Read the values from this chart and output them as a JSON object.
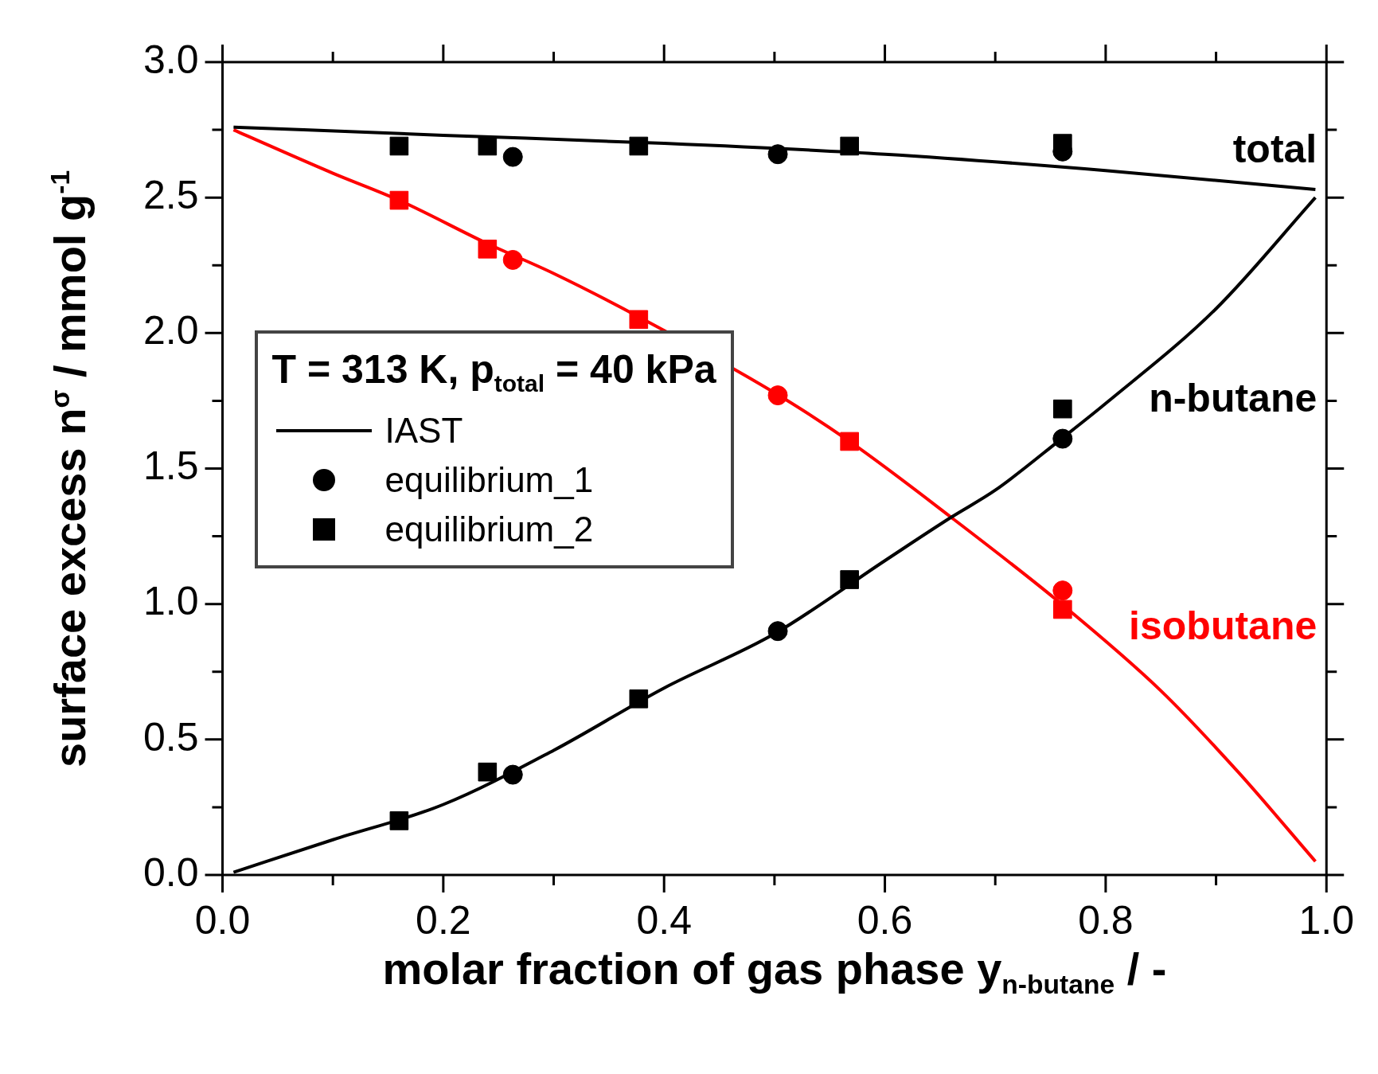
{
  "chart_data": {
    "type": "scatter",
    "xlabel": "molar fraction of gas phase y$_{n-butane}$ / -",
    "ylabel": "surface excess n$^{σ}$ / mmol g$^{-1}$",
    "legend_title": "T = 313 K, p$_{total}$ = 40 kPa",
    "legend": "left",
    "grid": false,
    "xlim": [
      0,
      1
    ],
    "xticks": [
      {
        "value": 0,
        "label": "0.0"
      },
      {
        "value": 0.1,
        "label": null
      },
      {
        "value": 0.2,
        "label": "0.2"
      },
      {
        "value": 0.3,
        "label": null
      },
      {
        "value": 0.4,
        "label": "0.4"
      },
      {
        "value": 0.5,
        "label": null
      },
      {
        "value": 0.6,
        "label": "0.6"
      },
      {
        "value": 0.7,
        "label": null
      },
      {
        "value": 0.8,
        "label": "0.8"
      },
      {
        "value": 0.9,
        "label": null
      },
      {
        "value": 1,
        "label": "1.0"
      }
    ],
    "ylim": [
      0,
      3
    ],
    "yticks": [
      {
        "value": 0,
        "label": "0.0"
      },
      {
        "value": 0.25,
        "label": null
      },
      {
        "value": 0.5,
        "label": "0.5"
      },
      {
        "value": 0.75,
        "label": null
      },
      {
        "value": 1,
        "label": "1.0"
      },
      {
        "value": 1.25,
        "label": null
      },
      {
        "value": 1.5,
        "label": "1.5"
      },
      {
        "value": 1.75,
        "label": null
      },
      {
        "value": 2,
        "label": "2.0"
      },
      {
        "value": 2.25,
        "label": null
      },
      {
        "value": 2.5,
        "label": "2.5"
      },
      {
        "value": 2.75,
        "label": null
      },
      {
        "value": 3,
        "label": "3.0"
      }
    ],
    "annotations": [
      "total",
      "n-butane",
      "isobutane"
    ],
    "series": [
      {
        "name": "IAST",
        "type": "line",
        "marker": "none",
        "color": "#000000",
        "x": [
          0.01,
          0.2,
          0.4,
          0.6,
          0.8,
          0.99
        ],
        "values": [
          2.76,
          2.73,
          2.7,
          2.66,
          2.6,
          2.53
        ]
      },
      {
        "type": "line",
        "marker": "none",
        "color": "#000000",
        "x": [
          0.01,
          0.1,
          0.2,
          0.3,
          0.4,
          0.5,
          0.6,
          0.66,
          0.7,
          0.76,
          0.8,
          0.9,
          0.99
        ],
        "values": [
          0.01,
          0.13,
          0.26,
          0.46,
          0.69,
          0.89,
          1.16,
          1.32,
          1.42,
          1.61,
          1.74,
          2.09,
          2.5
        ]
      },
      {
        "type": "line",
        "marker": "none",
        "color": "#ff0000",
        "x": [
          0.01,
          0.1,
          0.16,
          0.24,
          0.3,
          0.377,
          0.5,
          0.568,
          0.66,
          0.76,
          0.85,
          0.92,
          0.99
        ],
        "values": [
          2.75,
          2.59,
          2.49,
          2.33,
          2.22,
          2.06,
          1.78,
          1.6,
          1.32,
          1.0,
          0.68,
          0.38,
          0.05
        ]
      },
      {
        "name": "equilibrium_1",
        "type": "scatter",
        "marker": "circle",
        "color": "#000000",
        "x": [
          0.263,
          0.503,
          0.761
        ],
        "values": [
          0.37,
          0.9,
          1.61
        ]
      },
      {
        "name": "equilibrium_2",
        "type": "scatter",
        "marker": "square",
        "color": "#000000",
        "x": [
          0.16,
          0.24,
          0.377,
          0.568,
          0.761
        ],
        "values": [
          0.2,
          0.38,
          0.65,
          1.09,
          1.72
        ]
      },
      {
        "type": "scatter",
        "marker": "circle",
        "color": "#ff0000",
        "x": [
          0.263,
          0.503,
          0.761
        ],
        "values": [
          2.27,
          1.77,
          1.05
        ]
      },
      {
        "type": "scatter",
        "marker": "square",
        "color": "#ff0000",
        "x": [
          0.16,
          0.24,
          0.377,
          0.568,
          0.761
        ],
        "values": [
          2.49,
          2.31,
          2.05,
          1.6,
          0.98
        ]
      },
      {
        "type": "scatter",
        "marker": "circle",
        "color": "#000000",
        "x": [
          0.263,
          0.503,
          0.761
        ],
        "values": [
          2.65,
          2.66,
          2.67
        ]
      },
      {
        "type": "scatter",
        "marker": "square",
        "color": "#000000",
        "x": [
          0.16,
          0.24,
          0.377,
          0.568,
          0.761
        ],
        "values": [
          2.69,
          2.69,
          2.69,
          2.69,
          2.7
        ]
      }
    ]
  }
}
